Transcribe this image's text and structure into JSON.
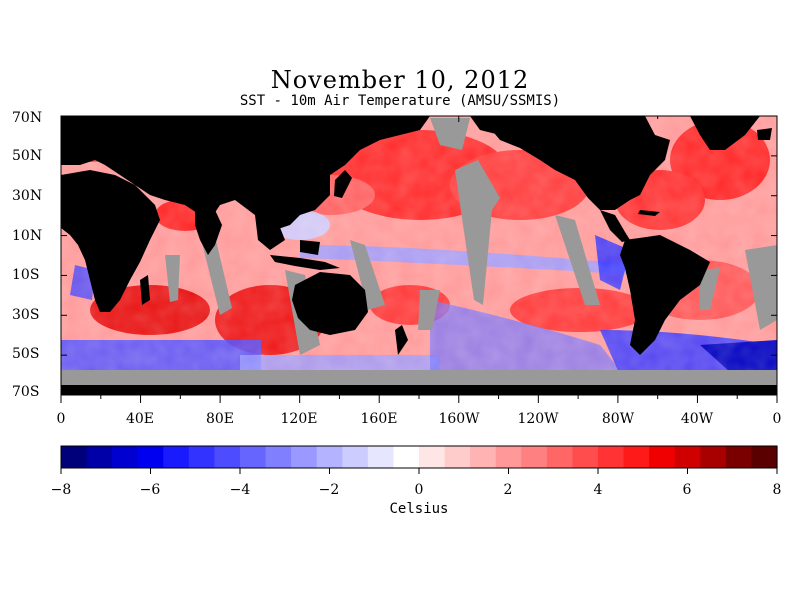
{
  "title": "November 10, 2012",
  "subtitle": "SST - 10m Air Temperature (AMSU/SSMIS)",
  "lat_labels": [
    "70N",
    "50N",
    "30N",
    "10N",
    "10S",
    "30S",
    "50S",
    "70S"
  ],
  "lon_labels": [
    "0",
    "40E",
    "80E",
    "120E",
    "160E",
    "160W",
    "120W",
    "80W",
    "40W",
    "0"
  ],
  "colorbar": {
    "tick_labels": [
      "−8",
      "−6",
      "−4",
      "−2",
      "0",
      "2",
      "4",
      "6",
      "8"
    ],
    "unit_label": "Celsius",
    "range": [
      -8,
      8
    ],
    "colors": [
      "#00007a",
      "#0000a8",
      "#0000d0",
      "#0000f0",
      "#1a1aff",
      "#3333ff",
      "#4d4dff",
      "#6666ff",
      "#8080ff",
      "#9999ff",
      "#b3b3ff",
      "#ccccff",
      "#e6e6ff",
      "#ffffff",
      "#ffe6e6",
      "#ffcccc",
      "#ffb3b3",
      "#ff9999",
      "#ff8080",
      "#ff6666",
      "#ff4d4d",
      "#ff3333",
      "#ff1a1a",
      "#f00000",
      "#d00000",
      "#a80000",
      "#7a0000",
      "#5a0000"
    ]
  },
  "colors": {
    "land": "#000000",
    "missing_data": "#999999",
    "warm": "#ff2020",
    "cool": "#2020ff"
  }
}
